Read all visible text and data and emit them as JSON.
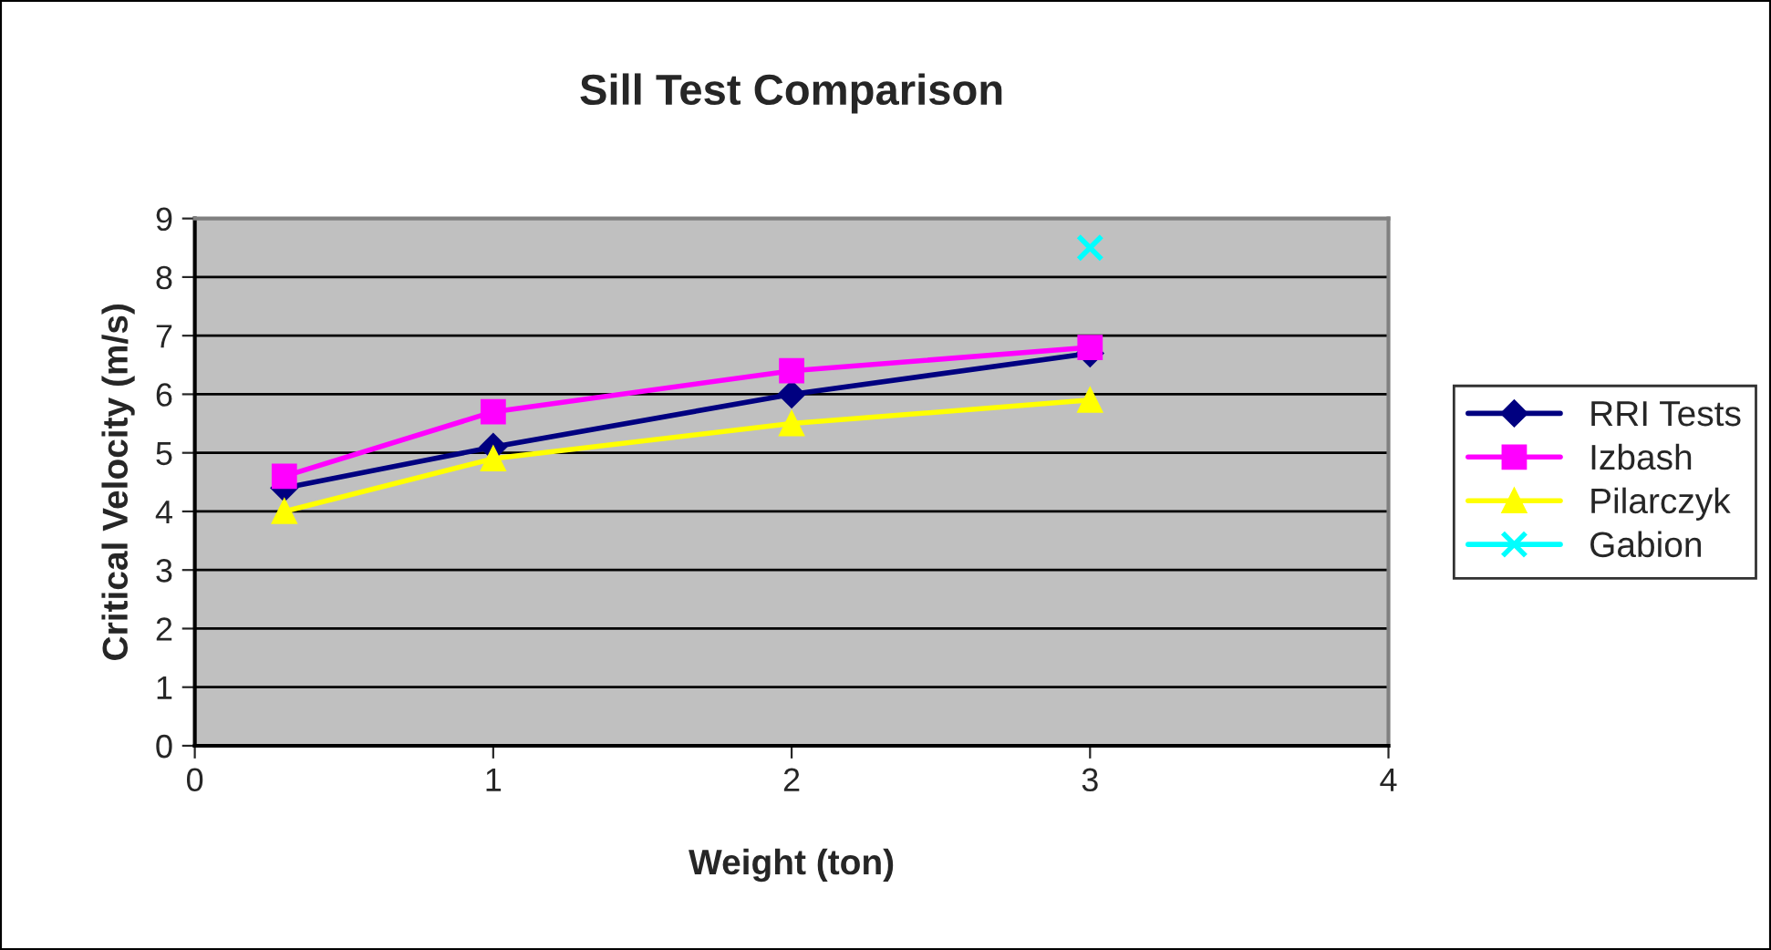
{
  "chart_data": {
    "type": "line",
    "title": "Sill Test Comparison",
    "xlabel": "Weight (ton)",
    "ylabel": "Critical Velocity (m/s)",
    "x": [
      0.3,
      1,
      2,
      3
    ],
    "series": [
      {
        "name": "RRI Tests",
        "color": "#000080",
        "marker": "diamond",
        "values": [
          4.4,
          5.1,
          6.0,
          6.7
        ]
      },
      {
        "name": "Izbash",
        "color": "#ff00ff",
        "marker": "square",
        "values": [
          4.6,
          5.7,
          6.4,
          6.8
        ]
      },
      {
        "name": "Pilarczyk",
        "color": "#ffff00",
        "marker": "triangle",
        "values": [
          4.0,
          4.9,
          5.5,
          5.9
        ]
      },
      {
        "name": "Gabion",
        "color": "#00ffff",
        "marker": "cross",
        "values": [
          null,
          null,
          null,
          8.5
        ]
      }
    ],
    "xlim": [
      0,
      4
    ],
    "xticks": [
      0,
      1,
      2,
      3,
      4
    ],
    "ylim": [
      0,
      9
    ],
    "yticks": [
      0,
      1,
      2,
      3,
      4,
      5,
      6,
      7,
      8,
      9
    ],
    "grid": "y",
    "legend": "right"
  }
}
